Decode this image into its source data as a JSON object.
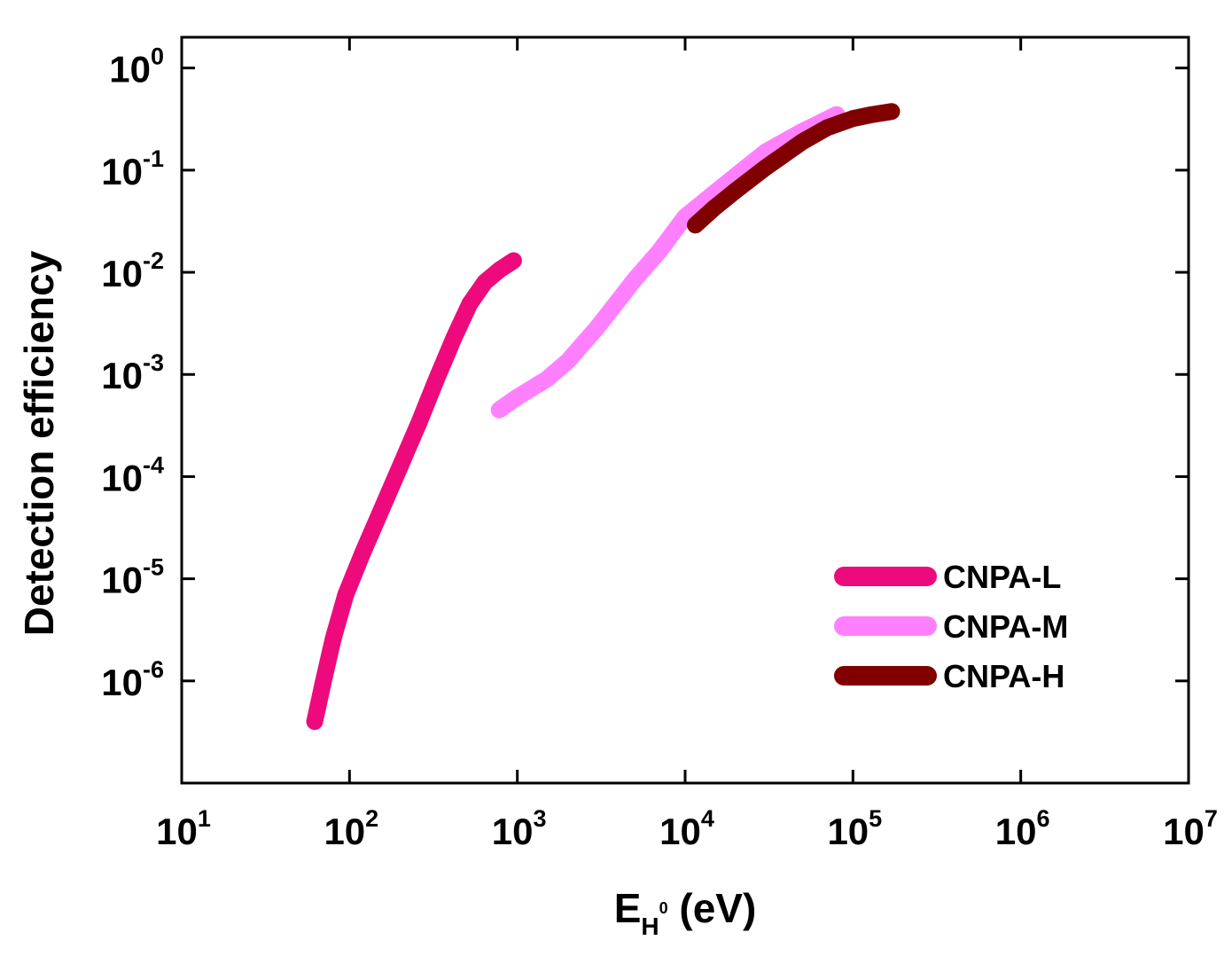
{
  "chart_data": {
    "type": "line",
    "xlabel": {
      "base": "E",
      "sub": "H",
      "sup": "0",
      "unit": " (eV)"
    },
    "ylabel": "Detection efficiency",
    "xscale": "log",
    "yscale": "log",
    "xlim": [
      10,
      10000000
    ],
    "ylim": [
      1e-07,
      2
    ],
    "x_ticks": [
      {
        "value": 10,
        "base": "10",
        "exp": "1"
      },
      {
        "value": 100,
        "base": "10",
        "exp": "2"
      },
      {
        "value": 1000,
        "base": "10",
        "exp": "3"
      },
      {
        "value": 10000,
        "base": "10",
        "exp": "4"
      },
      {
        "value": 100000,
        "base": "10",
        "exp": "5"
      },
      {
        "value": 1000000,
        "base": "10",
        "exp": "6"
      },
      {
        "value": 10000000,
        "base": "10",
        "exp": "7"
      }
    ],
    "y_ticks": [
      {
        "value": 1,
        "base": "10",
        "exp": "0"
      },
      {
        "value": 0.1,
        "base": "10",
        "exp": "-1"
      },
      {
        "value": 0.01,
        "base": "10",
        "exp": "-2"
      },
      {
        "value": 0.001,
        "base": "10",
        "exp": "-3"
      },
      {
        "value": 0.0001,
        "base": "10",
        "exp": "-4"
      },
      {
        "value": 1e-05,
        "base": "10",
        "exp": "-5"
      },
      {
        "value": 1e-06,
        "base": "10",
        "exp": "-6"
      }
    ],
    "grid": false,
    "legend_position": "bottom-right",
    "series": [
      {
        "name": "CNPA-L",
        "color": "#ee0a7c",
        "x": [
          62,
          70,
          80,
          95,
          120,
          150,
          200,
          260,
          330,
          420,
          520,
          640,
          780,
          950
        ],
        "y": [
          4e-07,
          1e-06,
          2.6e-06,
          7e-06,
          1.8e-05,
          4.2e-05,
          0.000125,
          0.00034,
          0.0009,
          0.0023,
          0.0049,
          0.008,
          0.0105,
          0.013
        ]
      },
      {
        "name": "CNPA-M",
        "color": "#ff80ff",
        "x": [
          780,
          1000,
          1500,
          2000,
          3000,
          4000,
          5000,
          7000,
          10000,
          15000,
          20000,
          30000,
          50000,
          80000
        ],
        "y": [
          0.00045,
          0.0006,
          0.0009,
          0.00135,
          0.0029,
          0.0053,
          0.0085,
          0.016,
          0.035,
          0.06,
          0.088,
          0.15,
          0.24,
          0.35
        ]
      },
      {
        "name": "CNPA-H",
        "color": "#800000",
        "x": [
          11500,
          15000,
          20000,
          30000,
          50000,
          70000,
          100000,
          130000,
          170000
        ],
        "y": [
          0.029,
          0.043,
          0.063,
          0.105,
          0.19,
          0.26,
          0.32,
          0.35,
          0.375
        ]
      }
    ]
  }
}
